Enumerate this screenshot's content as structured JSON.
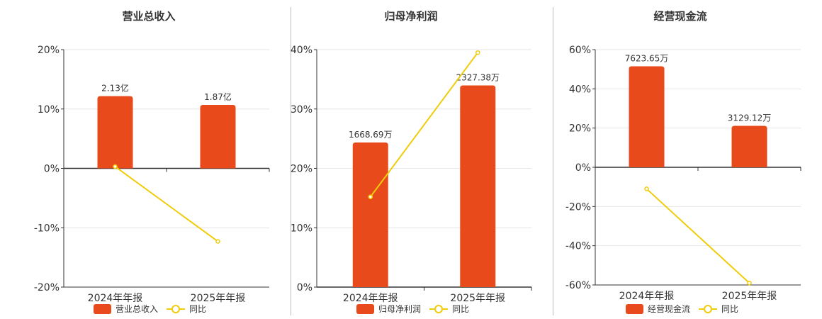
{
  "colors": {
    "bar": "#e84a1b",
    "line": "#f0cc0a",
    "axis": "#333333",
    "grid": "#e6e6e6",
    "text": "#333333"
  },
  "chart_data": [
    {
      "type": "bar",
      "title": "营业总收入",
      "categories": [
        "2024年年报",
        "2025年年报"
      ],
      "bar_values": [
        2.13,
        1.87
      ],
      "bar_labels": [
        "2.13亿",
        "1.87亿"
      ],
      "bar_axis": [
        0,
        3.5
      ],
      "yoy": [
        0.3,
        -12.3
      ],
      "ylim": [
        -20,
        20
      ],
      "yticks": [
        20,
        10,
        0,
        -10,
        -20
      ],
      "ytick_labels": [
        "20%",
        "10%",
        "0%",
        "-10%",
        "-20%"
      ],
      "legend": [
        "营业总收入",
        "同比"
      ],
      "legend_position": "bottom"
    },
    {
      "type": "bar",
      "title": "归母净利润",
      "categories": [
        "2024年年报",
        "2025年年报"
      ],
      "bar_values": [
        1668.69,
        2327.38
      ],
      "bar_labels": [
        "1668.69万",
        "2327.38万"
      ],
      "bar_axis": [
        0,
        2740
      ],
      "yoy": [
        15.2,
        39.5
      ],
      "ylim": [
        0,
        40
      ],
      "yticks": [
        40,
        30,
        20,
        10,
        0
      ],
      "ytick_labels": [
        "40%",
        "30%",
        "20%",
        "10%",
        "0%"
      ],
      "legend": [
        "归母净利润",
        "同比"
      ],
      "legend_position": "bottom"
    },
    {
      "type": "bar",
      "title": "经营现金流",
      "categories": [
        "2024年年报",
        "2025年年报"
      ],
      "bar_values": [
        7623.65,
        3129.12
      ],
      "bar_labels": [
        "7623.65万",
        "3129.12万"
      ],
      "bar_axis": [
        0,
        8880
      ],
      "yoy": [
        -11,
        -59
      ],
      "ylim": [
        -60,
        60
      ],
      "yticks": [
        60,
        40,
        20,
        0,
        -20,
        -40,
        -60
      ],
      "ytick_labels": [
        "60%",
        "40%",
        "20%",
        "0%",
        "-20%",
        "-40%",
        "-60%"
      ],
      "legend": [
        "经营现金流",
        "同比"
      ],
      "legend_position": "bottom"
    }
  ]
}
